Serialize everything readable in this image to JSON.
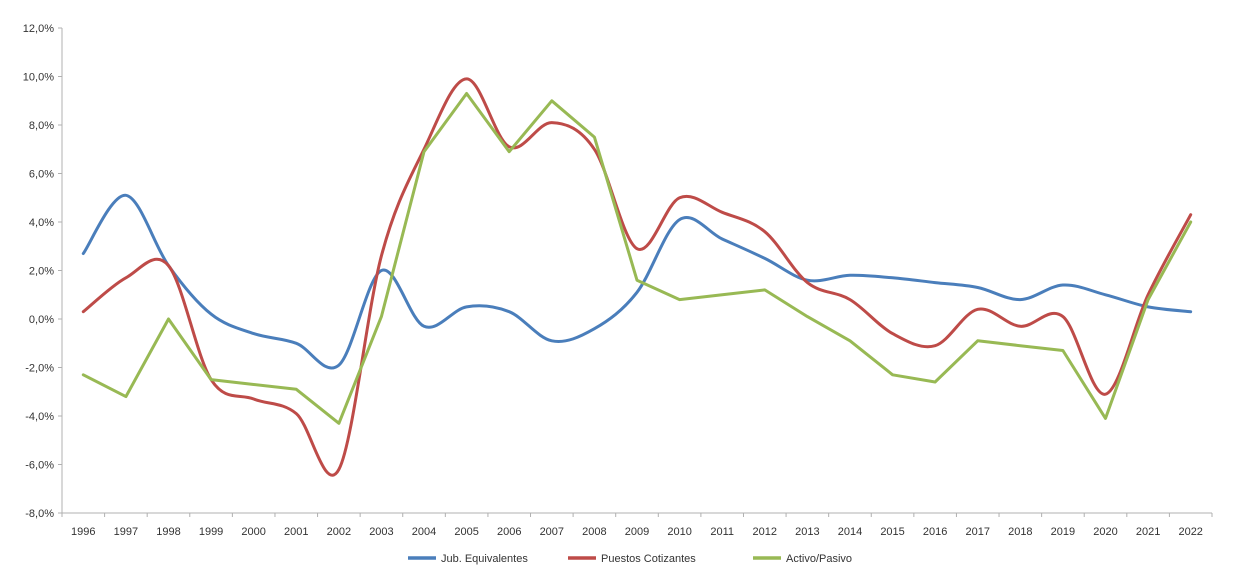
{
  "chart_data": {
    "type": "line",
    "categories": [
      "1996",
      "1997",
      "1998",
      "1999",
      "2000",
      "2001",
      "2002",
      "2003",
      "2004",
      "2005",
      "2006",
      "2007",
      "2008",
      "2009",
      "2010",
      "2011",
      "2012",
      "2013",
      "2014",
      "2015",
      "2016",
      "2017",
      "2018",
      "2019",
      "2020",
      "2021",
      "2022"
    ],
    "y_ticks": [
      "12,0%",
      "10,0%",
      "8,0%",
      "6,0%",
      "4,0%",
      "2,0%",
      "0,0%",
      "-2,0%",
      "-4,0%",
      "-6,0%",
      "-8,0%"
    ],
    "ylim": [
      -8,
      12
    ],
    "y_unit": "%",
    "grid": false,
    "legend_position": "bottom",
    "series": [
      {
        "name": "Jub. Equivalentes",
        "color": "#4a7ebb",
        "smooth": true,
        "values": [
          2.7,
          5.1,
          2.2,
          0.2,
          -0.6,
          -1.0,
          -1.9,
          2.0,
          -0.3,
          0.5,
          0.3,
          -0.9,
          -0.4,
          1.1,
          4.1,
          3.3,
          2.5,
          1.6,
          1.8,
          1.7,
          1.5,
          1.3,
          0.8,
          1.4,
          1.0,
          0.5,
          0.3
        ]
      },
      {
        "name": "Puestos Cotizantes",
        "color": "#be4b48",
        "smooth": true,
        "values": [
          0.3,
          1.7,
          2.2,
          -2.5,
          -3.3,
          -3.9,
          -6.2,
          2.6,
          7.0,
          9.9,
          7.1,
          8.1,
          7.0,
          2.9,
          5.0,
          4.4,
          3.6,
          1.5,
          0.8,
          -0.6,
          -1.1,
          0.4,
          -0.3,
          0.1,
          -3.1,
          1.0,
          4.3
        ]
      },
      {
        "name": "Activo/Pasivo",
        "color": "#98b954",
        "smooth": false,
        "values": [
          -2.3,
          -3.2,
          0.0,
          -2.5,
          -2.7,
          -2.9,
          -4.3,
          0.1,
          6.9,
          9.3,
          6.9,
          9.0,
          7.5,
          1.6,
          0.8,
          1.0,
          1.2,
          0.1,
          -0.9,
          -2.3,
          -2.6,
          -0.9,
          -1.1,
          -1.3,
          -4.1,
          0.8,
          4.0
        ]
      }
    ]
  }
}
